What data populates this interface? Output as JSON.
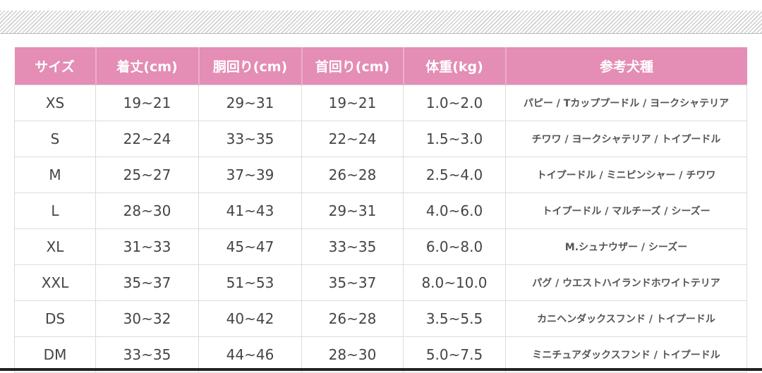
{
  "table": {
    "headers": [
      "サイズ",
      "着丈(cm)",
      "胴回り(cm)",
      "首回り(cm)",
      "体重(kg)",
      "参考犬種"
    ],
    "rows": [
      [
        "XS",
        "19~21",
        "29~31",
        "19~21",
        "1.0~2.0",
        "パピー / Tカッププードル / ヨークシャテリア"
      ],
      [
        "S",
        "22~24",
        "33~35",
        "22~24",
        "1.5~3.0",
        "チワワ / ヨークシャテリア / トイプードル"
      ],
      [
        "M",
        "25~27",
        "37~39",
        "26~28",
        "2.5~4.0",
        "トイプードル / ミニピンシャー / チワワ"
      ],
      [
        "L",
        "28~30",
        "41~43",
        "29~31",
        "4.0~6.0",
        "トイプードル / マルチーズ / シーズー"
      ],
      [
        "XL",
        "31~33",
        "45~47",
        "33~35",
        "6.0~8.0",
        "M.シュナウザー / シーズー"
      ],
      [
        "XXL",
        "35~37",
        "51~53",
        "35~37",
        "8.0~10.0",
        "パグ / ウエストハイランドホワイトテリア"
      ],
      [
        "DS",
        "30~32",
        "40~42",
        "26~28",
        "3.5~5.5",
        "カニヘンダックスフンド / トイプードル"
      ],
      [
        "DM",
        "33~35",
        "44~46",
        "28~30",
        "5.0~7.5",
        "ミニチュアダックスフンド / トイプードル"
      ]
    ]
  },
  "colors": {
    "header_bg": "#e48db5",
    "header_text": "#ffffff"
  }
}
